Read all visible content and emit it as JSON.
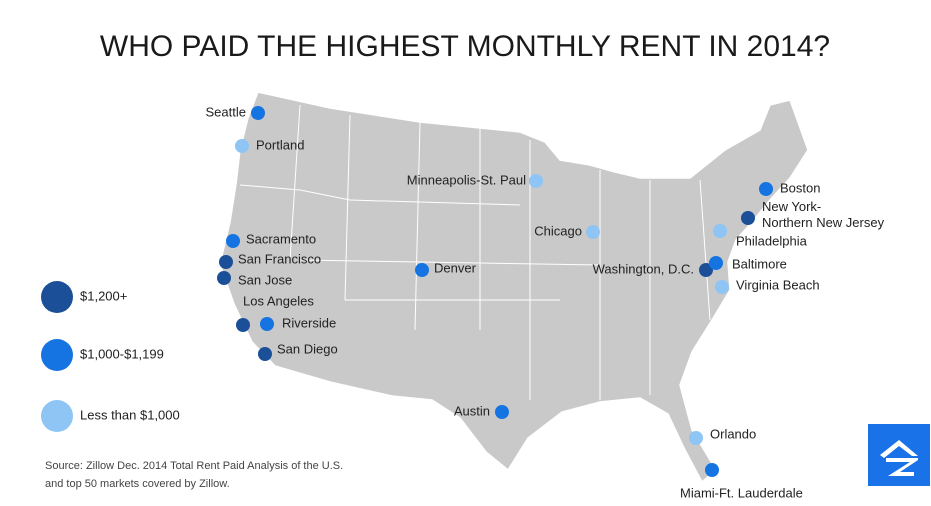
{
  "title": "WHO PAID THE HIGHEST MONTHLY RENT IN 2014?",
  "legend": [
    {
      "label": "$1,200+",
      "color": "#1b4f98"
    },
    {
      "label": "$1,000-$1,199",
      "color": "#1674e2"
    },
    {
      "label": "Less than $1,000",
      "color": "#8ec5f4"
    }
  ],
  "source": [
    "Source: Zillow Dec. 2014 Total Rent Paid Analysis of the U.S.",
    "and top 50 markets covered by Zillow."
  ],
  "cities": [
    {
      "name": "Seattle",
      "color": "#1674e2"
    },
    {
      "name": "Portland",
      "color": "#8ec5f4"
    },
    {
      "name": "Minneapolis-St. Paul",
      "color": "#8ec5f4"
    },
    {
      "name": "Boston",
      "color": "#1674e2"
    },
    {
      "name": "New York-Northern New Jersey",
      "color": "#1b4f98"
    },
    {
      "name": "Chicago",
      "color": "#8ec5f4"
    },
    {
      "name": "Philadelphia",
      "color": "#8ec5f4"
    },
    {
      "name": "Sacramento",
      "color": "#1674e2"
    },
    {
      "name": "San Francisco",
      "color": "#1b4f98"
    },
    {
      "name": "San Jose",
      "color": "#1b4f98"
    },
    {
      "name": "Denver",
      "color": "#1674e2"
    },
    {
      "name": "Washington, D.C.",
      "color": "#1b4f98"
    },
    {
      "name": "Baltimore",
      "color": "#1674e2"
    },
    {
      "name": "Virginia Beach",
      "color": "#8ec5f4"
    },
    {
      "name": "Los Angeles",
      "color": "#1b4f98"
    },
    {
      "name": "Riverside",
      "color": "#1674e2"
    },
    {
      "name": "San Diego",
      "color": "#1b4f98"
    },
    {
      "name": "Austin",
      "color": "#1674e2"
    },
    {
      "name": "Orlando",
      "color": "#8ec5f4"
    },
    {
      "name": "Miami-Ft. Lauderdale",
      "color": "#1674e2"
    }
  ]
}
